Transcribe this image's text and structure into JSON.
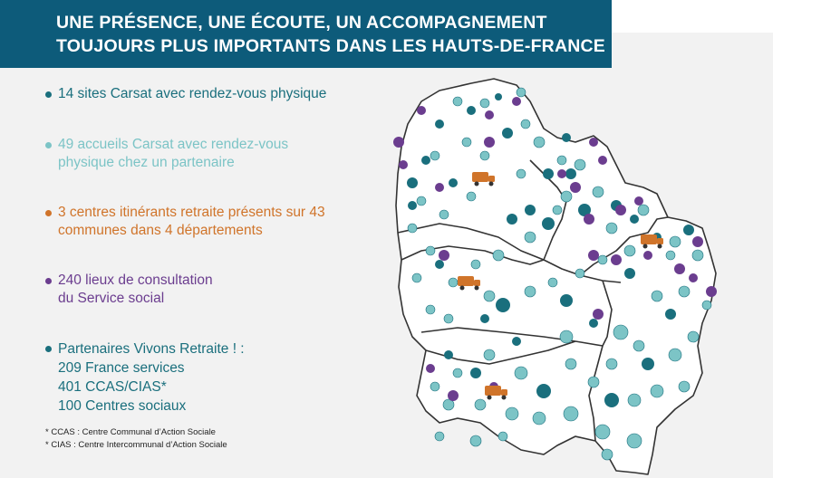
{
  "header": {
    "line1": "UNE PRÉSENCE, UNE ÉCOUTE, UN ACCOMPAGNEMENT",
    "line2": "TOUJOURS PLUS IMPORTANTS DANS LES HAUTS-DE-FRANCE"
  },
  "colors": {
    "dark_teal": "#1a6f7d",
    "light_teal": "#7cc4c6",
    "orange": "#d0742a",
    "purple": "#6b3d8f",
    "header_bg": "#0d5b7a"
  },
  "legend": {
    "item1": {
      "line1": "14 sites Carsat avec rendez-vous physique"
    },
    "item2": {
      "line1": "49 accueils Carsat avec rendez-vous",
      "line2": "physique chez un partenaire"
    },
    "item3": {
      "line1": "3 centres itinérants retraite présents sur 43",
      "line2": "communes dans 4 départements"
    },
    "item4": {
      "line1": "240 lieux de consultation",
      "line2": "du Service social"
    },
    "item5": {
      "line1": "Partenaires Vivons Retraite ! :",
      "line2": "209 France services",
      "line3": "401 CCAS/CIAS*",
      "line4": "100 Centres sociaux"
    }
  },
  "notes": {
    "ccas": "* CCAS : Centre Communal d’Action Sociale",
    "cias": "* CIAS : Centre Intercommunal d’Action Sociale"
  }
}
